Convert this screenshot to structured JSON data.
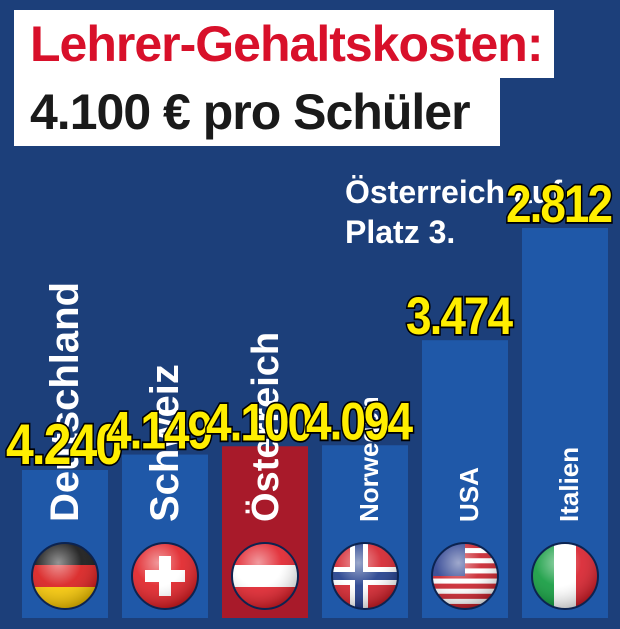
{
  "header": {
    "title_line1": "Lehrer-Gehaltskosten:",
    "title_line2": "4.100 € pro Schüler"
  },
  "annotation": {
    "line1": "Österreich auf",
    "line2": "Platz 3."
  },
  "colors": {
    "background": "#1c3f7a",
    "bar": "#1f58a8",
    "highlight_bar": "#a81a2a",
    "value_label": "#ffee00",
    "title_red": "#d8102a"
  },
  "chart_data": {
    "type": "bar",
    "orientation": "vertical",
    "categories": [
      "Deutschland",
      "Schweiz",
      "Österreich",
      "Norwegen",
      "USA",
      "Italien"
    ],
    "values": [
      4240,
      4149,
      4100,
      4094,
      3474,
      2812
    ],
    "value_labels": [
      "4.240",
      "4.149",
      "4.100",
      "4.094",
      "3.474",
      "2.812"
    ],
    "highlight": "Österreich",
    "flags": [
      "flag-germany-icon",
      "flag-switzerland-icon",
      "flag-austria-icon",
      "flag-norway-icon",
      "flag-usa-icon",
      "flag-italy-icon"
    ],
    "title": "Lehrer-Gehaltskosten:",
    "subtitle": "4.100 € pro Schüler",
    "unit": "€",
    "xlabel": "",
    "ylabel": "",
    "ylim": [
      2000,
      4400
    ],
    "grid": false,
    "legend": "none"
  }
}
